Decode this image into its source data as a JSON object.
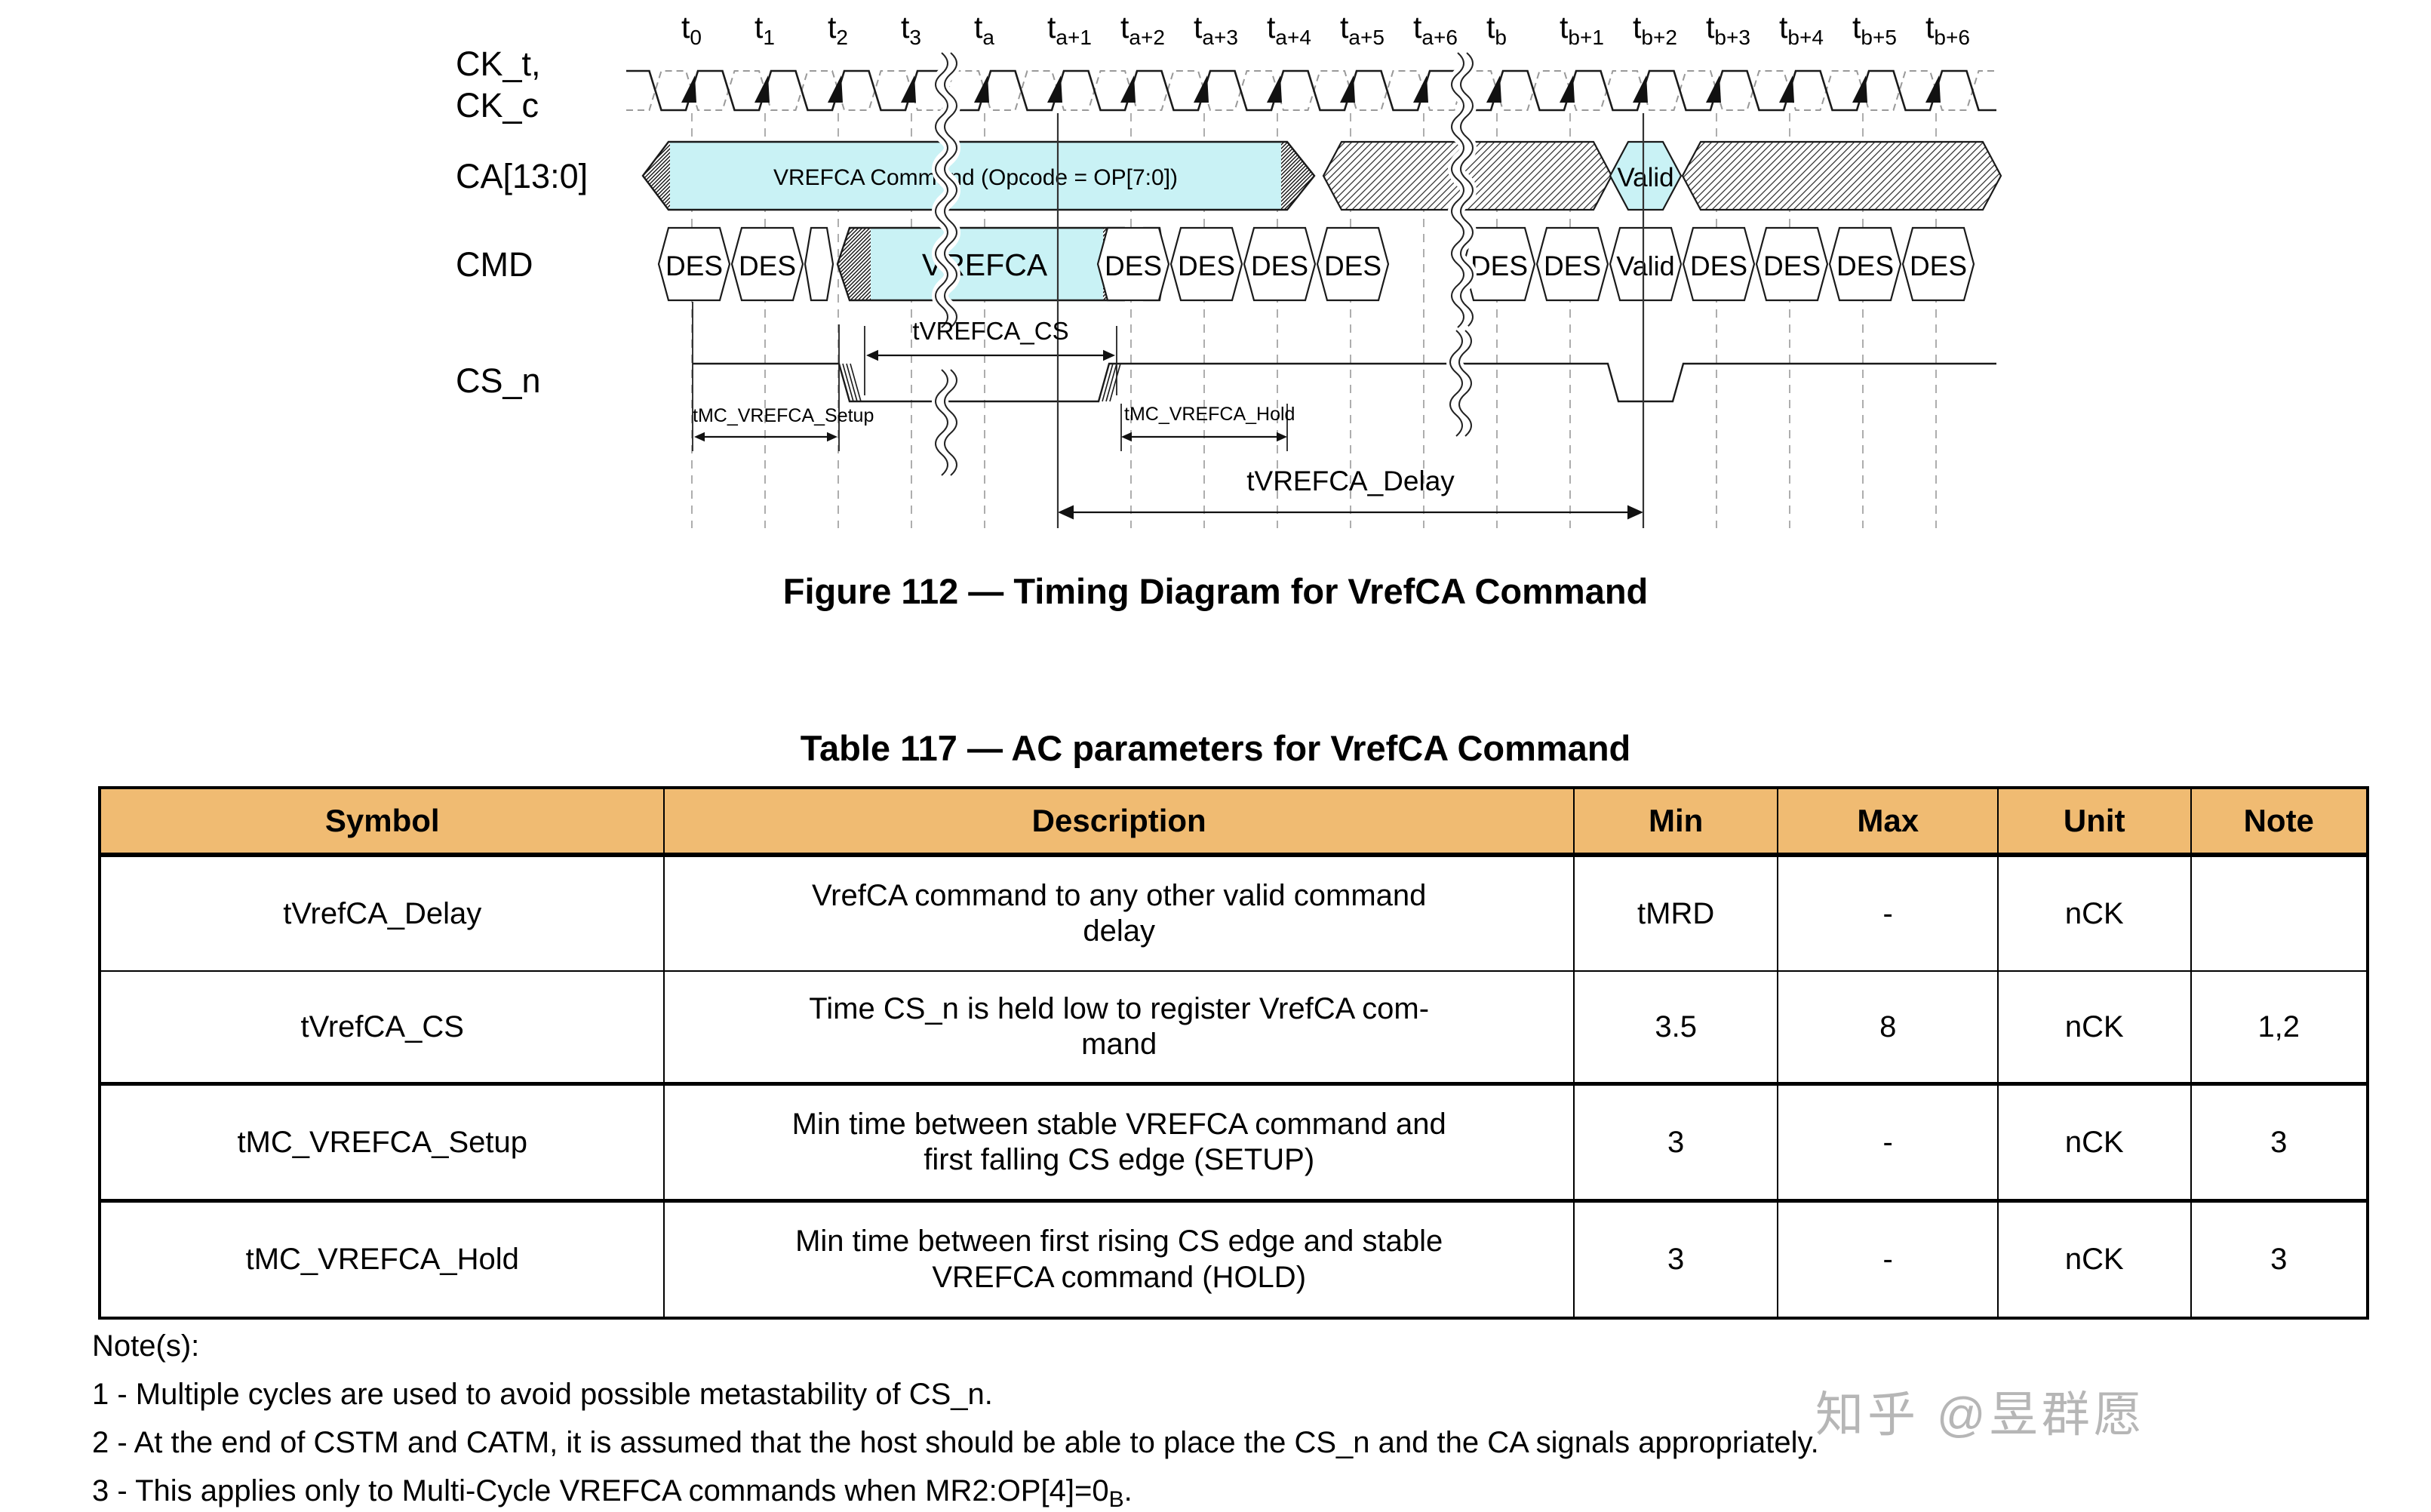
{
  "figure": {
    "caption": "Figure 112 — Timing Diagram for VrefCA Command"
  },
  "diagram": {
    "signals": {
      "clock_top": "CK_t,",
      "clock_bottom": "CK_c",
      "ca": "CA[13:0]",
      "cmd": "CMD",
      "cs": "CS_n"
    },
    "clock_prefix": "t",
    "clock_subscripts": [
      "0",
      "1",
      "2",
      "3",
      "a",
      "a+1",
      "a+2",
      "a+3",
      "a+4",
      "a+5",
      "a+6",
      "b",
      "b+1",
      "b+2",
      "b+3",
      "b+4",
      "b+5",
      "b+6"
    ],
    "ca_row": {
      "command_label": "VREFCA Command (Opcode = OP[7:0])",
      "valid_label": "Valid"
    },
    "cmd_row": {
      "vrefca_label": "VREFCA",
      "valid_label": "Valid",
      "des_label": "DES",
      "des_before": [
        "DES",
        "DES"
      ],
      "des_middle": [
        "DES",
        "DES",
        "DES",
        "DES",
        "DES",
        "DES"
      ],
      "des_after": [
        "DES",
        "DES",
        "DES",
        "DES"
      ]
    },
    "annotations": {
      "cs_low": "tVREFCA_CS",
      "setup": "tMC_VREFCA_Setup",
      "hold": "tMC_VREFCA_Hold",
      "delay": "tVREFCA_Delay"
    },
    "colors": {
      "bus_fill": "#c9f2f5",
      "line": "#1a1a1a",
      "grid": "#999999",
      "header_fill": "#f0bb72",
      "watermark": "#b0b0b0"
    }
  },
  "table": {
    "title": "Table 117 — AC parameters for VrefCA Command",
    "headers": [
      "Symbol",
      "Description",
      "Min",
      "Max",
      "Unit",
      "Note"
    ],
    "rows": [
      {
        "symbol": "tVrefCA_Delay",
        "description": "VrefCA command to any other valid command\ndelay",
        "min": "tMRD",
        "max": "-",
        "unit": "nCK",
        "note": ""
      },
      {
        "symbol": "tVrefCA_CS",
        "description": "Time CS_n is held low to register VrefCA com-\nmand",
        "min": "3.5",
        "max": "8",
        "unit": "nCK",
        "note": "1,2"
      },
      {
        "symbol": "tMC_VREFCA_Setup",
        "description": "Min time between stable VREFCA command and\nfirst falling CS edge (SETUP)",
        "min": "3",
        "max": "-",
        "unit": "nCK",
        "note": "3"
      },
      {
        "symbol": "tMC_VREFCA_Hold",
        "description": "Min time between first rising CS edge and stable\nVREFCA command (HOLD)",
        "min": "3",
        "max": "-",
        "unit": "nCK",
        "note": "3"
      }
    ]
  },
  "notes": {
    "heading": "Note(s):",
    "note1": "1 - Multiple cycles are used to avoid possible metastability of CS_n.",
    "note2": "2 - At the end of CSTM and CATM, it is assumed that the host should be able to place the CS_n and the CA signals appropriately.",
    "note3_pre": "3 - This applies only to Multi-Cycle VREFCA commands when MR2:OP[4]=0",
    "note3_sub": "B",
    "note3_post": "."
  },
  "watermark": {
    "text": "知乎 @昱群愿"
  }
}
